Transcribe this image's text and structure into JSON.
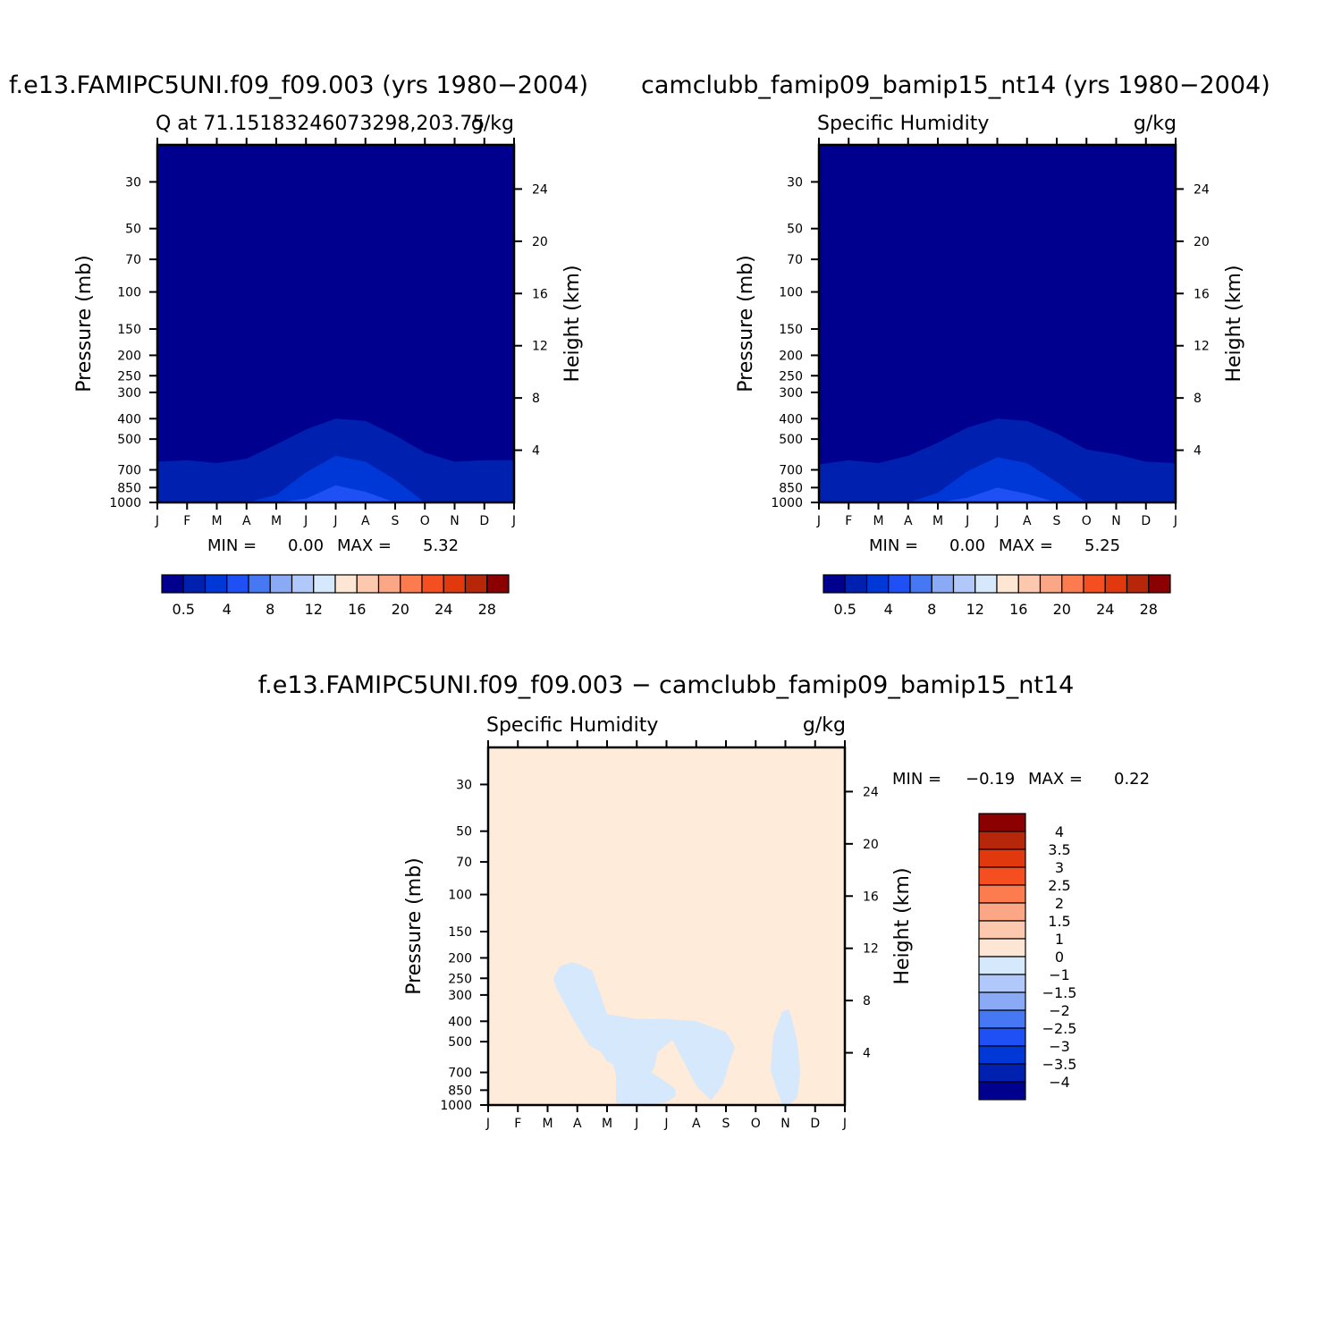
{
  "colors": {
    "deep_blue": "#00008e",
    "levels_blue": [
      "#00008e",
      "#0020b0",
      "#0038d8",
      "#1e50f5",
      "#4578f2",
      "#8aaaf5",
      "#b1c9fa",
      "#d6e8fb"
    ],
    "levels_red": [
      "#fde6d3",
      "#fcc8ae",
      "#fba685",
      "#fc7c4f",
      "#f54f21",
      "#e2380e",
      "#b62609",
      "#8b0000"
    ],
    "diff_positive_0_1": "#feebd9",
    "diff_negative_0_m1": "#d6e8fb"
  },
  "chart_data": [
    {
      "type": "heatmap",
      "title": "f.e13.FAMIPC5UNI.f09_f09.003 (yrs 1980−2004)",
      "subtitle_left": "Q at 71.15183246073298,203.75",
      "subtitle_right": "g/kg",
      "ylabel": "Pressure (mb)",
      "ylabel_right": "Height (km)",
      "x_ticklabels": [
        "J",
        "F",
        "M",
        "A",
        "M",
        "J",
        "J",
        "A",
        "S",
        "O",
        "N",
        "D",
        "J"
      ],
      "y_ticks_pressure": [
        30,
        50,
        70,
        100,
        150,
        200,
        250,
        300,
        400,
        500,
        700,
        850,
        1000
      ],
      "y_ticks_height": [
        4,
        8,
        12,
        16,
        20,
        24
      ],
      "ylim_pressure": [
        1000,
        20
      ],
      "yscale": "log",
      "min_label": "MIN =",
      "min_value": "0.00",
      "max_label": "MAX =",
      "max_value": "5.32",
      "contour_levels": [
        0.5,
        2,
        4,
        6,
        8,
        10,
        12,
        14,
        16,
        18,
        20,
        22,
        24,
        26,
        28
      ],
      "colorbar_ticklabels": [
        "0.5",
        "4",
        "8",
        "12",
        "16",
        "20",
        "24",
        "28"
      ],
      "contour_tops_hpa": {
        "months": [
          0,
          1,
          2,
          3,
          4,
          5,
          6,
          7,
          8,
          9,
          10,
          11,
          12
        ],
        "q_0_5": [
          640,
          630,
          650,
          620,
          530,
          450,
          400,
          410,
          480,
          580,
          640,
          630,
          630
        ],
        "q_2": [
          1000,
          1000,
          1000,
          1000,
          920,
          720,
          600,
          640,
          780,
          1000,
          1000,
          1000,
          1000
        ],
        "q_4": [
          1000,
          1000,
          1000,
          1000,
          1000,
          960,
          830,
          890,
          1000,
          1000,
          1000,
          1000,
          1000
        ]
      }
    },
    {
      "type": "heatmap",
      "title": "camclubb_famip09_bamip15_nt14 (yrs 1980−2004)",
      "subtitle_left": "Specific Humidity",
      "subtitle_right": "g/kg",
      "ylabel": "Pressure (mb)",
      "ylabel_right": "Height (km)",
      "x_ticklabels": [
        "J",
        "F",
        "M",
        "A",
        "M",
        "J",
        "J",
        "A",
        "S",
        "O",
        "N",
        "D",
        "J"
      ],
      "y_ticks_pressure": [
        30,
        50,
        70,
        100,
        150,
        200,
        250,
        300,
        400,
        500,
        700,
        850,
        1000
      ],
      "y_ticks_height": [
        4,
        8,
        12,
        16,
        20,
        24
      ],
      "ylim_pressure": [
        1000,
        20
      ],
      "yscale": "log",
      "min_label": "MIN =",
      "min_value": "0.00",
      "max_label": "MAX =",
      "max_value": "5.25",
      "contour_levels": [
        0.5,
        2,
        4,
        6,
        8,
        10,
        12,
        14,
        16,
        18,
        20,
        22,
        24,
        26,
        28
      ],
      "colorbar_ticklabels": [
        "0.5",
        "4",
        "8",
        "12",
        "16",
        "20",
        "24",
        "28"
      ],
      "contour_tops_hpa": {
        "months": [
          0,
          1,
          2,
          3,
          4,
          5,
          6,
          7,
          8,
          9,
          10,
          11,
          12
        ],
        "q_0_5": [
          660,
          630,
          650,
          600,
          520,
          440,
          400,
          410,
          470,
          560,
          590,
          640,
          650
        ],
        "q_2": [
          1000,
          1000,
          1000,
          1000,
          900,
          710,
          610,
          650,
          800,
          1000,
          1000,
          1000,
          1000
        ],
        "q_4": [
          1000,
          1000,
          1000,
          1000,
          1000,
          950,
          850,
          910,
          1000,
          1000,
          1000,
          1000,
          1000
        ]
      }
    },
    {
      "type": "heatmap",
      "title": "f.e13.FAMIPC5UNI.f09_f09.003 − camclubb_famip09_bamip15_nt14",
      "subtitle_left": "Specific Humidity",
      "subtitle_right": "g/kg",
      "ylabel": "Pressure (mb)",
      "ylabel_right": "Height (km)",
      "x_ticklabels": [
        "J",
        "F",
        "M",
        "A",
        "M",
        "J",
        "J",
        "A",
        "S",
        "O",
        "N",
        "D",
        "J"
      ],
      "y_ticks_pressure": [
        30,
        50,
        70,
        100,
        150,
        200,
        250,
        300,
        400,
        500,
        700,
        850,
        1000
      ],
      "y_ticks_height": [
        4,
        8,
        12,
        16,
        20,
        24
      ],
      "ylim_pressure": [
        1000,
        20
      ],
      "yscale": "log",
      "min_label": "MIN =",
      "min_value": "−0.19",
      "max_label": "MAX =",
      "max_value": "0.22",
      "contour_levels": [
        -4,
        -3.5,
        -3,
        -2.5,
        -2,
        -1.5,
        -1,
        0,
        1,
        1.5,
        2,
        2.5,
        3,
        3.5,
        4
      ],
      "colorbar_ticklabels": [
        "4",
        "3.5",
        "3",
        "2.5",
        "2",
        "1.5",
        "1",
        "0",
        "−1",
        "−1.5",
        "−2",
        "−2.5",
        "−3",
        "−3.5",
        "−4"
      ],
      "negative_region_outline": {
        "month": [
          2.3,
          2.2,
          2.4,
          2.8,
          3.1,
          3.5,
          4.0,
          5.0,
          6.0,
          7.0,
          8.0,
          8.3,
          8.1,
          7.9,
          7.5,
          7.0,
          6.2,
          5.7,
          5.6,
          5.5,
          6.0,
          6.3,
          6.3,
          6.0,
          5.4,
          4.9,
          4.6,
          4.3,
          4.3,
          4.2,
          4.0,
          3.8,
          3.4,
          3.2,
          2.9,
          2.3
        ],
        "pressure_hpa": [
          280,
          250,
          220,
          210,
          215,
          230,
          370,
          390,
          390,
          400,
          450,
          530,
          640,
          800,
          950,
          810,
          490,
          560,
          660,
          700,
          780,
          840,
          910,
          970,
          1000,
          1000,
          990,
          980,
          720,
          640,
          620,
          560,
          520,
          470,
          400,
          280
        ]
      },
      "negative_region_outline_2": {
        "month": [
          10.1,
          9.9,
          9.6,
          9.5,
          9.7,
          9.9,
          10.1,
          10.4,
          10.5,
          10.4,
          10.2,
          10.1
        ],
        "pressure_hpa": [
          350,
          360,
          460,
          680,
          840,
          1000,
          1000,
          920,
          700,
          500,
          380,
          350
        ]
      }
    }
  ]
}
